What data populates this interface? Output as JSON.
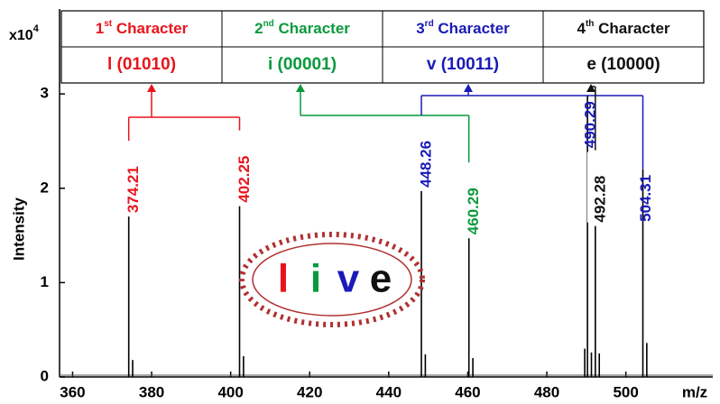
{
  "chart_data": {
    "type": "spectrum",
    "y_unit": {
      "base": "x10",
      "exponent": "4"
    },
    "y_label": "Intensity",
    "x_label": "m/z",
    "xlim": [
      356.7,
      522
    ],
    "xticks": [
      360,
      380,
      400,
      420,
      440,
      460,
      480,
      500
    ],
    "ylim": [
      0,
      3.9
    ],
    "yticks": [
      0,
      1,
      2,
      3
    ],
    "series": [
      {
        "name_hidden": false,
        "x": [
          374.21,
          402.25,
          448.26,
          460.29,
          490.29,
          492.28,
          504.31
        ],
        "values": [
          1.7,
          1.81,
          1.97,
          1.47,
          2.98,
          1.6,
          2.2
        ],
        "colors": [
          "#e8141c",
          "#e8141c",
          "#1a1ab8",
          "#0a9a3c",
          "#1a1ab8",
          "#111111",
          "#1a1ab8"
        ],
        "groups": [
          0,
          0,
          2,
          1,
          2,
          3,
          2
        ]
      },
      {
        "x": [
          375.2,
          403.25,
          449.26,
          461.29,
          489.6,
          491.29,
          493.28,
          505.3
        ],
        "values": [
          0.18,
          0.22,
          0.24,
          0.2,
          0.3,
          0.26,
          0.25,
          0.36
        ],
        "color": "#111111"
      }
    ],
    "table": [
      {
        "number": "1",
        "suffix": "st",
        "word": "Character",
        "code": "l (01010)",
        "color": "#e8141c"
      },
      {
        "number": "2",
        "suffix": "nd",
        "word": "Character",
        "code": "i (00001)",
        "color": "#0a9a3c"
      },
      {
        "number": "3",
        "suffix": "rd",
        "word": "Character",
        "code": "v (10011)",
        "color": "#1a1ab8"
      },
      {
        "number": "4",
        "suffix": "th",
        "word": "Character",
        "code": "e (10000)",
        "color": "#111111"
      }
    ],
    "word_letters": [
      "l",
      "i",
      "v",
      "e"
    ]
  }
}
